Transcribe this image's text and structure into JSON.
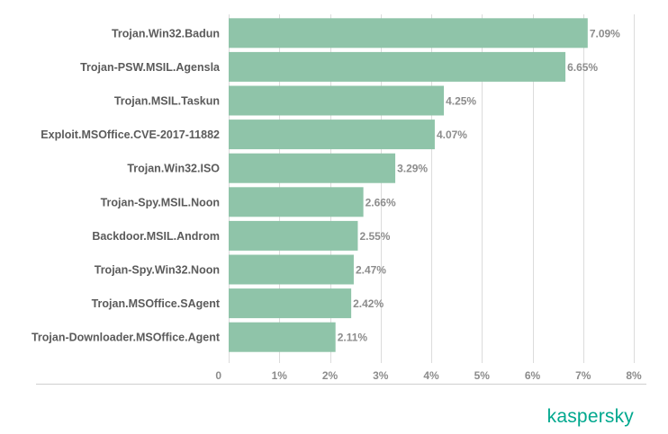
{
  "chart_data": {
    "type": "bar",
    "orientation": "horizontal",
    "categories": [
      "Trojan.Win32.Badun",
      "Trojan-PSW.MSIL.Agensla",
      "Trojan.MSIL.Taskun",
      "Exploit.MSOffice.CVE-2017-11882",
      "Trojan.Win32.ISO",
      "Trojan-Spy.MSIL.Noon",
      "Backdoor.MSIL.Androm",
      "Trojan-Spy.Win32.Noon",
      "Trojan.MSOffice.SAgent",
      "Trojan-Downloader.MSOffice.Agent"
    ],
    "values": [
      7.09,
      6.65,
      4.25,
      4.07,
      3.29,
      2.66,
      2.55,
      2.47,
      2.42,
      2.11
    ],
    "value_labels": [
      "7.09%",
      "6.65%",
      "4.25%",
      "4.07%",
      "3.29%",
      "2.66%",
      "2.55%",
      "2.47%",
      "2.42%",
      "2.11%"
    ],
    "xlim": [
      0,
      8
    ],
    "xticks": [
      0,
      1,
      2,
      3,
      4,
      5,
      6,
      7,
      8
    ],
    "xtick_labels": [
      "0",
      "1%",
      "2%",
      "3%",
      "4%",
      "5%",
      "6%",
      "7%",
      "8%"
    ],
    "grid": true,
    "bar_color": "#8fc4a9",
    "grid_color": "#dcdcdc"
  },
  "brand": {
    "logo_text": "kaspersky",
    "color": "#00a88e"
  }
}
